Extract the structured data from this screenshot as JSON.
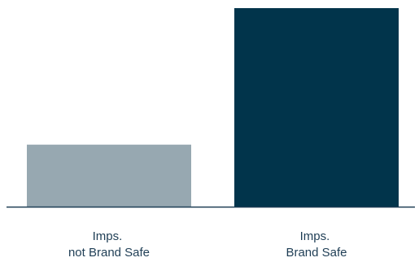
{
  "chart_data": {
    "type": "bar",
    "categories": [
      [
        "Imps.",
        "not Brand Safe"
      ],
      [
        "Imps.",
        "Brand Safe"
      ]
    ],
    "values": [
      20,
      64
    ],
    "ylim": [
      0,
      64
    ],
    "grid": false,
    "title": "",
    "xlabel": "",
    "ylabel": "",
    "colors": [
      "#97a8b1",
      "#01344b"
    ],
    "axis_color": "#1f3e55"
  }
}
